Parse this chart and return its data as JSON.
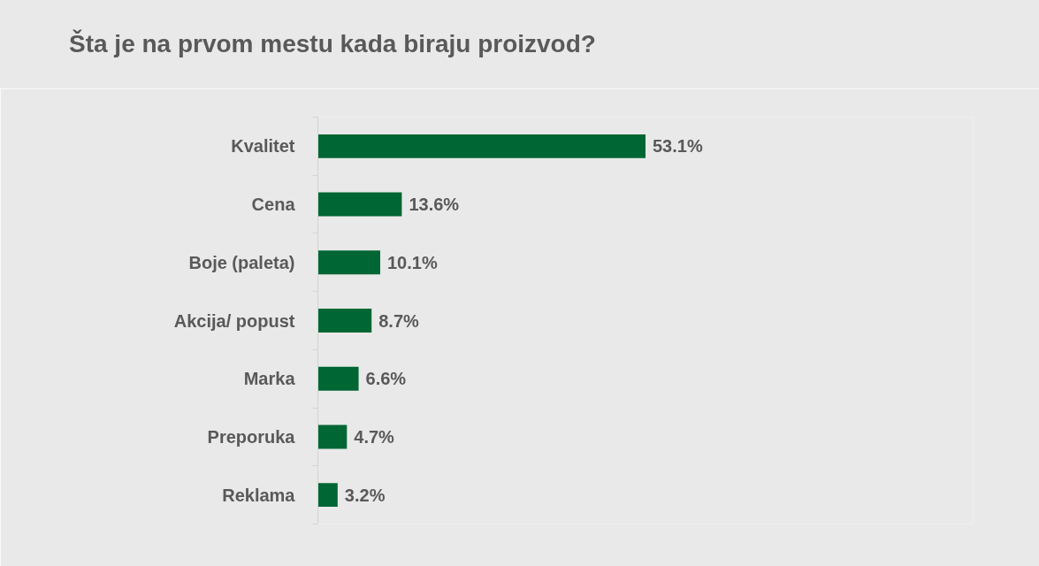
{
  "chart_data": {
    "type": "bar",
    "orientation": "horizontal",
    "title": "Šta je na prvom mestu kada biraju proizvod?",
    "categories": [
      "Kvalitet",
      "Cena",
      "Boje (paleta)",
      "Akcija/ popust",
      "Marka",
      "Preporuka",
      "Reklama"
    ],
    "values": [
      53.1,
      13.6,
      10.1,
      8.7,
      6.6,
      4.7,
      3.2
    ],
    "value_labels": [
      "53.1%",
      "13.6%",
      "10.1%",
      "8.7%",
      "6.6%",
      "4.7%",
      "3.2%"
    ],
    "color": "#006633",
    "tick_labels": "y"
  }
}
